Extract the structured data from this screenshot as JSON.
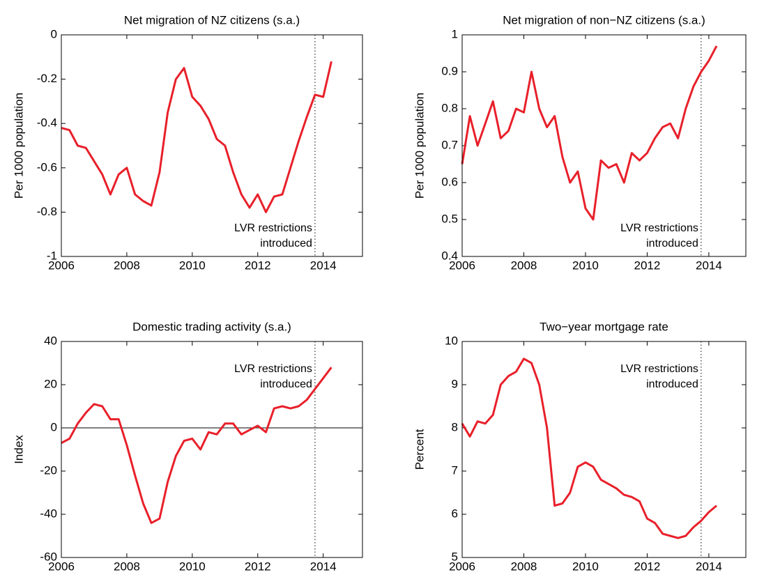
{
  "chart_data": [
    {
      "type": "line",
      "title": "Net migration of NZ citizens (s.a.)",
      "ylabel": "Per 1000 population",
      "x": [
        2006,
        2006.25,
        2006.5,
        2006.75,
        2007,
        2007.25,
        2007.5,
        2007.75,
        2008,
        2008.25,
        2008.5,
        2008.75,
        2009,
        2009.25,
        2009.5,
        2009.75,
        2010,
        2010.25,
        2010.5,
        2010.75,
        2011,
        2011.25,
        2011.5,
        2011.75,
        2012,
        2012.25,
        2012.5,
        2012.75,
        2013,
        2013.25,
        2013.5,
        2013.75,
        2014,
        2014.25
      ],
      "values": [
        -0.42,
        -0.43,
        -0.5,
        -0.51,
        -0.57,
        -0.63,
        -0.72,
        -0.63,
        -0.6,
        -0.72,
        -0.75,
        -0.77,
        -0.62,
        -0.35,
        -0.2,
        -0.15,
        -0.28,
        -0.32,
        -0.38,
        -0.47,
        -0.5,
        -0.62,
        -0.72,
        -0.78,
        -0.72,
        -0.8,
        -0.73,
        -0.72,
        -0.6,
        -0.48,
        -0.37,
        -0.27,
        -0.28,
        -0.12
      ],
      "color": "#e8202a",
      "xlim": [
        2006,
        2015.2
      ],
      "xticks": [
        2006,
        2008,
        2010,
        2012,
        2014
      ],
      "ylim": [
        -1,
        0
      ],
      "yticks": [
        -1,
        -0.8,
        -0.6,
        -0.4,
        -0.2,
        0
      ],
      "vline": 2013.75,
      "annotation": [
        "LVR restrictions",
        "introduced"
      ]
    },
    {
      "type": "line",
      "title": "Net migration of non−NZ citizens (s.a.)",
      "ylabel": "Per 1000 population",
      "x": [
        2006,
        2006.25,
        2006.5,
        2006.75,
        2007,
        2007.25,
        2007.5,
        2007.75,
        2008,
        2008.25,
        2008.5,
        2008.75,
        2009,
        2009.25,
        2009.5,
        2009.75,
        2010,
        2010.25,
        2010.5,
        2010.75,
        2011,
        2011.25,
        2011.5,
        2011.75,
        2012,
        2012.25,
        2012.5,
        2012.75,
        2013,
        2013.25,
        2013.5,
        2013.75,
        2014,
        2014.25
      ],
      "values": [
        0.65,
        0.78,
        0.7,
        0.76,
        0.82,
        0.72,
        0.74,
        0.8,
        0.79,
        0.9,
        0.8,
        0.75,
        0.78,
        0.67,
        0.6,
        0.63,
        0.53,
        0.5,
        0.66,
        0.64,
        0.65,
        0.6,
        0.68,
        0.66,
        0.68,
        0.72,
        0.75,
        0.76,
        0.72,
        0.8,
        0.86,
        0.9,
        0.93,
        0.97
      ],
      "color": "#e8202a",
      "xlim": [
        2006,
        2015.2
      ],
      "xticks": [
        2006,
        2008,
        2010,
        2012,
        2014
      ],
      "ylim": [
        0.4,
        1
      ],
      "yticks": [
        0.4,
        0.5,
        0.6,
        0.7,
        0.8,
        0.9,
        1
      ],
      "vline": 2013.75,
      "annotation": [
        "LVR restrictions",
        "introduced"
      ]
    },
    {
      "type": "line",
      "title": "Domestic trading activity (s.a.)",
      "ylabel": "Index",
      "x": [
        2006,
        2006.25,
        2006.5,
        2006.75,
        2007,
        2007.25,
        2007.5,
        2007.75,
        2008,
        2008.25,
        2008.5,
        2008.75,
        2009,
        2009.25,
        2009.5,
        2009.75,
        2010,
        2010.25,
        2010.5,
        2010.75,
        2011,
        2011.25,
        2011.5,
        2011.75,
        2012,
        2012.25,
        2012.5,
        2012.75,
        2013,
        2013.25,
        2013.5,
        2013.75,
        2014,
        2014.25
      ],
      "values": [
        -7,
        -5,
        2,
        7,
        11,
        10,
        4,
        4,
        -8,
        -22,
        -35,
        -44,
        -42,
        -25,
        -13,
        -6,
        -5,
        -10,
        -2,
        -3,
        2,
        2,
        -3,
        -1,
        1,
        -2,
        9,
        10,
        9,
        10,
        13,
        18,
        23,
        28
      ],
      "color": "#e8202a",
      "xlim": [
        2006,
        2015.2
      ],
      "xticks": [
        2006,
        2008,
        2010,
        2012,
        2014
      ],
      "ylim": [
        -60,
        40
      ],
      "yticks": [
        -60,
        -40,
        -20,
        0,
        20,
        40
      ],
      "zero_line": true,
      "vline": 2013.75,
      "annotation": [
        "LVR restrictions",
        "introduced"
      ]
    },
    {
      "type": "line",
      "title": "Two−year mortgage rate",
      "ylabel": "Percent",
      "x": [
        2006,
        2006.25,
        2006.5,
        2006.75,
        2007,
        2007.25,
        2007.5,
        2007.75,
        2008,
        2008.25,
        2008.5,
        2008.75,
        2009,
        2009.25,
        2009.5,
        2009.75,
        2010,
        2010.25,
        2010.5,
        2010.75,
        2011,
        2011.25,
        2011.5,
        2011.75,
        2012,
        2012.25,
        2012.5,
        2012.75,
        2013,
        2013.25,
        2013.5,
        2013.75,
        2014,
        2014.25
      ],
      "values": [
        8.1,
        7.8,
        8.15,
        8.1,
        8.3,
        9.0,
        9.2,
        9.3,
        9.6,
        9.5,
        9.0,
        8.0,
        6.2,
        6.25,
        6.5,
        7.1,
        7.2,
        7.1,
        6.8,
        6.7,
        6.6,
        6.45,
        6.4,
        6.3,
        5.9,
        5.8,
        5.55,
        5.5,
        5.45,
        5.5,
        5.7,
        5.85,
        6.05,
        6.2
      ],
      "color": "#e8202a",
      "xlim": [
        2006,
        2015.2
      ],
      "xticks": [
        2006,
        2008,
        2010,
        2012,
        2014
      ],
      "ylim": [
        5,
        10
      ],
      "yticks": [
        5,
        6,
        7,
        8,
        9,
        10
      ],
      "vline": 2013.75,
      "annotation": [
        "LVR restrictions",
        "introduced"
      ]
    }
  ]
}
